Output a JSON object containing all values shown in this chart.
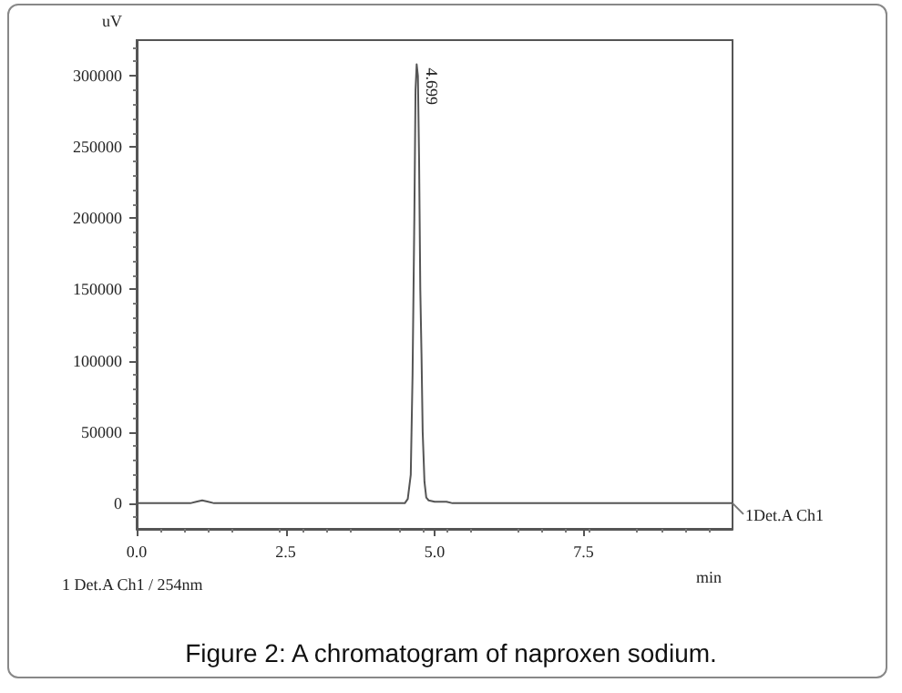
{
  "chart_data": {
    "type": "line",
    "title": "Figure 2: A chromatogram of naproxen sodium.",
    "xlabel": "min",
    "ylabel": "uV",
    "x": [
      0,
      0.9,
      1.0,
      1.1,
      1.2,
      1.3,
      1.5,
      4.4,
      4.5,
      4.55,
      4.6,
      4.63,
      4.66,
      4.68,
      4.699,
      4.72,
      4.74,
      4.76,
      4.78,
      4.8,
      4.83,
      4.86,
      4.9,
      5.0,
      5.2,
      5.3,
      10.0
    ],
    "series": [
      {
        "color": "#555555",
        "values": [
          0,
          0,
          1000,
          2000,
          1000,
          0,
          0,
          0,
          0,
          3000,
          20000,
          90000,
          200000,
          290000,
          308000,
          300000,
          240000,
          150000,
          105000,
          50000,
          15000,
          4000,
          2000,
          1000,
          1000,
          0,
          0
        ]
      }
    ],
    "xlim": [
      0,
      10
    ],
    "xticks": [
      {
        "value": 0,
        "label": "0.0"
      },
      {
        "value": 2.5,
        "label": "2.5"
      },
      {
        "value": 5,
        "label": "5.0"
      },
      {
        "value": 7.5,
        "label": "7.5"
      }
    ],
    "ylim": [
      -18000,
      325000
    ],
    "yticks": [
      0,
      50000,
      100000,
      150000,
      200000,
      250000,
      300000
    ],
    "annotations": [
      {
        "text": "4.699",
        "x": 4.699,
        "y": 308000
      },
      {
        "text": "1Det.A Ch1",
        "x": 10,
        "y": 0
      },
      "1 Det.A Ch1 / 254nm"
    ],
    "grid": false,
    "marker": "none",
    "line_style": "solid"
  }
}
